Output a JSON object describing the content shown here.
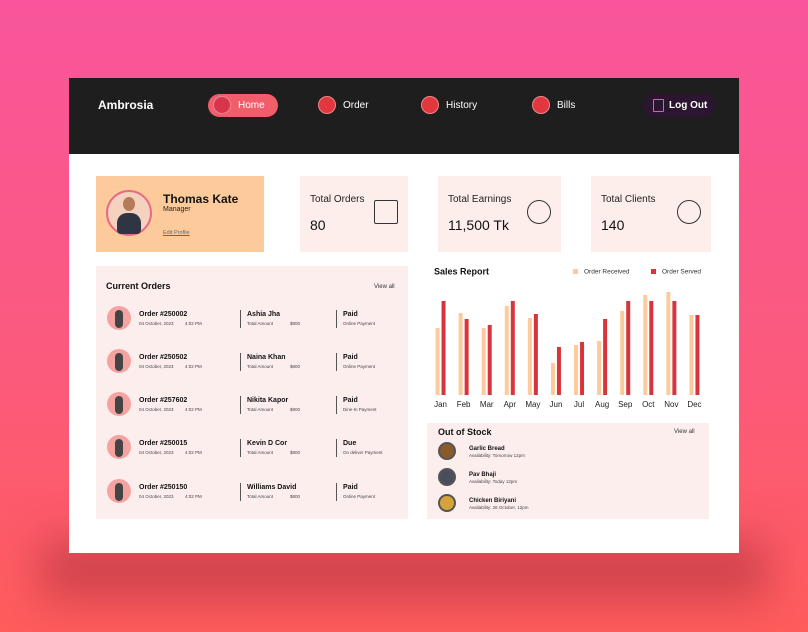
{
  "brand": "Ambrosia",
  "nav": [
    "Home",
    "Order",
    "History",
    "Bills"
  ],
  "logout": "Log Out",
  "profile": {
    "name": "Thomas Kate",
    "role": "Manager",
    "link": "Edit Profile"
  },
  "stats": [
    {
      "label": "Total Orders",
      "value": "80"
    },
    {
      "label": "Total Earnings",
      "value": "11,500 Tk"
    },
    {
      "label": "Total Clients",
      "value": "140"
    }
  ],
  "current_orders": {
    "title": "Current Orders",
    "view_all": "View all",
    "rows": [
      {
        "order": "Order #250002",
        "date": "04 October, 2023",
        "time": "4:02 PM",
        "customer": "Ashia Jha",
        "amount_label": "Total Amount",
        "amount": "$800",
        "status": "Paid",
        "payment": "Online Payment"
      },
      {
        "order": "Order #250502",
        "date": "04 October, 2023",
        "time": "4:02 PM",
        "customer": "Naina Khan",
        "amount_label": "Total Amount",
        "amount": "$800",
        "status": "Paid",
        "payment": "Online Payment"
      },
      {
        "order": "Order #257602",
        "date": "04 October, 2023",
        "time": "4:02 PM",
        "customer": "Nikita Kapor",
        "amount_label": "Total Amount",
        "amount": "$800",
        "status": "Paid",
        "payment": "Dine-In Payment"
      },
      {
        "order": "Order #250015",
        "date": "04 October, 2023",
        "time": "4:02 PM",
        "customer": "Kevin D Cor",
        "amount_label": "Total Amount",
        "amount": "$800",
        "status": "Due",
        "payment": "On deliver Payment"
      },
      {
        "order": "Order #250150",
        "date": "04 October, 2023",
        "time": "4:02 PM",
        "customer": "Williams David",
        "amount_label": "Total Amount",
        "amount": "$800",
        "status": "Paid",
        "payment": "Online Payment"
      }
    ]
  },
  "chart_data": {
    "type": "bar",
    "title": "Sales Report",
    "categories": [
      "Jan",
      "Feb",
      "Mar",
      "Apr",
      "May",
      "Jun",
      "Jul",
      "Aug",
      "Sep",
      "Oct",
      "Nov",
      "Dec"
    ],
    "series": [
      {
        "name": "Order Received",
        "color": "#fdcb9b",
        "values": [
          67,
          82,
          67,
          89,
          77,
          32,
          50,
          54,
          84,
          100,
          103,
          80
        ]
      },
      {
        "name": "Order Served",
        "color": "#d9343b",
        "values": [
          94,
          76,
          70,
          94,
          81,
          48,
          53,
          76,
          94,
          94,
          94,
          80
        ]
      }
    ],
    "ylim": [
      0,
      110
    ],
    "legend": "top-right"
  },
  "out_of_stock": {
    "title": "Out of Stock",
    "view_all": "View all",
    "items": [
      {
        "name": "Garlic Bread",
        "availability": "Availability: Tomorrow 12pm"
      },
      {
        "name": "Pav Bhaji",
        "availability": "Availability: Today 12pm"
      },
      {
        "name": "Chicken Biriyani",
        "availability": "Availability: 26 October, 12pm"
      }
    ]
  }
}
